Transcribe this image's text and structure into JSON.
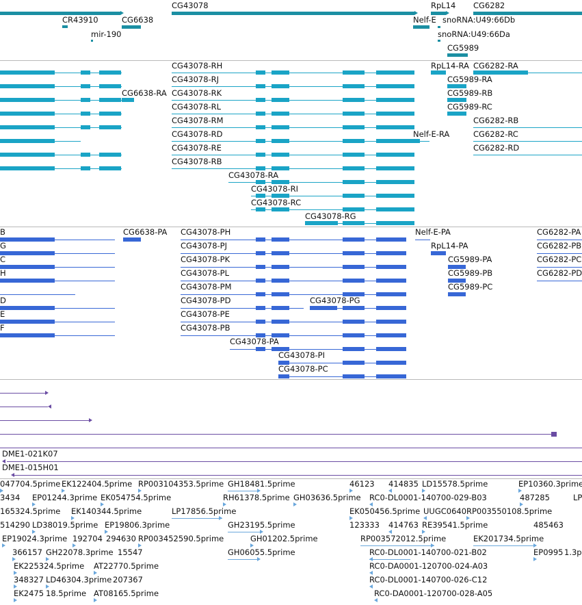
{
  "colors": {
    "gene": "#1b8fa3",
    "transcript": "#1aa4c6",
    "protein": "#3767d6",
    "clone": "#6a4ca3",
    "est": "#6aa7dc",
    "divider": "#b9b9b9"
  },
  "genes_track": {
    "labels": [
      "CG43078",
      "RpL14",
      "CG6282",
      "CR43910",
      "CG6638",
      "Nelf-E",
      "snoRNA:U49:66Db",
      "mir-190",
      "snoRNA:U49:66Da",
      "CG5989"
    ]
  },
  "transcripts_track": {
    "labels": [
      "CG43078-RH",
      "RpL14-RA",
      "CG6282-RA",
      "CG43078-RJ",
      "CG5989-RA",
      "CG6638-RA",
      "CG43078-RK",
      "CG5989-RB",
      "CG43078-RL",
      "CG5989-RC",
      "CG43078-RM",
      "CG6282-RB",
      "CG43078-RD",
      "Nelf-E-RA",
      "CG6282-RC",
      "CG43078-RE",
      "CG6282-RD",
      "CG43078-RB",
      "CG43078-RA",
      "CG43078-RI",
      "CG43078-RC",
      "CG43078-RG"
    ]
  },
  "proteins_track": {
    "labels": [
      "B",
      "CG6638-PA",
      "CG43078-PH",
      "Nelf-E-PA",
      "CG6282-PA",
      "G",
      "CG43078-PJ",
      "RpL14-PA",
      "CG6282-PB",
      "C",
      "CG43078-PK",
      "CG5989-PA",
      "CG6282-PC",
      "H",
      "CG43078-PL",
      "CG5989-PB",
      "CG6282-PD",
      "CG43078-PM",
      "CG5989-PC",
      "D",
      "CG43078-PD",
      "CG43078-PG",
      "E",
      "CG43078-PE",
      "F",
      "CG43078-PB",
      "CG43078-PA",
      "CG43078-PI",
      "CG43078-PC"
    ]
  },
  "clones_track": {
    "labels": [
      "DME1-021K07",
      "DME1-015H01"
    ]
  },
  "est_track": {
    "labels": [
      "047704.5prime",
      "EK122404.5prime",
      "RP003104353.5prime",
      "GH18481.5prime",
      "46123",
      "414835",
      "LD15578.5prime",
      "EP10360.3prime",
      "3434",
      "EP01244.3prime",
      "EK054754.5prime",
      "RH61378.5prime",
      "GH03636.5prime",
      "RC0-DL0001-140700-029-B03",
      "487285",
      "LP",
      "165324.5prime",
      "EK140344.5prime",
      "LP17856.5prime",
      "EK050456.5prime",
      "UUGC0640",
      "RP003550108.5prime",
      "514290",
      "LD38019.5prime",
      "EP19806.3prime",
      "GH23195.5prime",
      "123333",
      "414763",
      "RE39541.5prime",
      "485463",
      "EP19024.3prime",
      "192704",
      "294630",
      "RP003452590.5prime",
      "GH01202.5prime",
      "RP003572012.5prime",
      "EK201734.5prime",
      "366157",
      "GH22078.3prime",
      "15547",
      "GH06055.5prime",
      "RC0-DL0001-140700-021-B02",
      "EP0995",
      "1.3p",
      "EK225324.5prime",
      "AT22770.5prime",
      "RC0-DA0001-120700-024-A03",
      "348327",
      "LD46304.3prime",
      "207367",
      "RC0-DL0001-140700-026-C12",
      "EK2475",
      "18.5prime",
      "AT08165.5prime",
      "RC0-DA0001-120700-028-A05"
    ]
  }
}
